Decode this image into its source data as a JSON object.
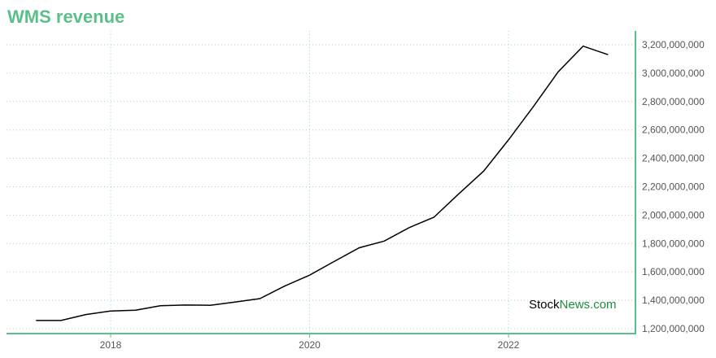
{
  "colors": {
    "brand": "#5cbf8a",
    "wm_dark": "#000000",
    "wm_green": "#1a8f3c"
  },
  "watermark": {
    "part1": "Stock",
    "part2": "News",
    "part3": ".com"
  },
  "chart_data": {
    "type": "line",
    "title": "WMS revenue",
    "xlabel": "",
    "ylabel": "",
    "ylim": [
      1180000000,
      3280000000
    ],
    "y_ticks": [
      1200000000,
      1400000000,
      1600000000,
      1800000000,
      2000000000,
      2200000000,
      2400000000,
      2600000000,
      2800000000,
      3000000000,
      3200000000
    ],
    "y_tick_labels": [
      "1,200,000,000",
      "1,400,000,000",
      "1,600,000,000",
      "1,800,000,000",
      "2,000,000,000",
      "2,200,000,000",
      "2,400,000,000",
      "2,600,000,000",
      "2,800,000,000",
      "3,000,000,000",
      "3,200,000,000"
    ],
    "x_ticks": [
      2018,
      2020,
      2022
    ],
    "x_tick_labels": [
      "2018",
      "2020",
      "2022"
    ],
    "grid": true,
    "series": [
      {
        "x": [
          2017.25,
          2017.5,
          2017.75,
          2018.0,
          2018.25,
          2018.5,
          2018.75,
          2019.0,
          2019.25,
          2019.5,
          2019.75,
          2020.0,
          2020.25,
          2020.5,
          2020.75,
          2021.0,
          2021.25,
          2021.5,
          2021.75,
          2022.0,
          2022.25,
          2022.5,
          2022.75,
          2023.0
        ],
        "values": [
          1258000000,
          1258000000,
          1300000000,
          1325000000,
          1330000000,
          1362000000,
          1367000000,
          1365000000,
          1388000000,
          1412000000,
          1500000000,
          1577000000,
          1675000000,
          1770000000,
          1817000000,
          1912000000,
          1985000000,
          2150000000,
          2310000000,
          2530000000,
          2765000000,
          3010000000,
          3190000000,
          3130000000
        ]
      }
    ]
  }
}
